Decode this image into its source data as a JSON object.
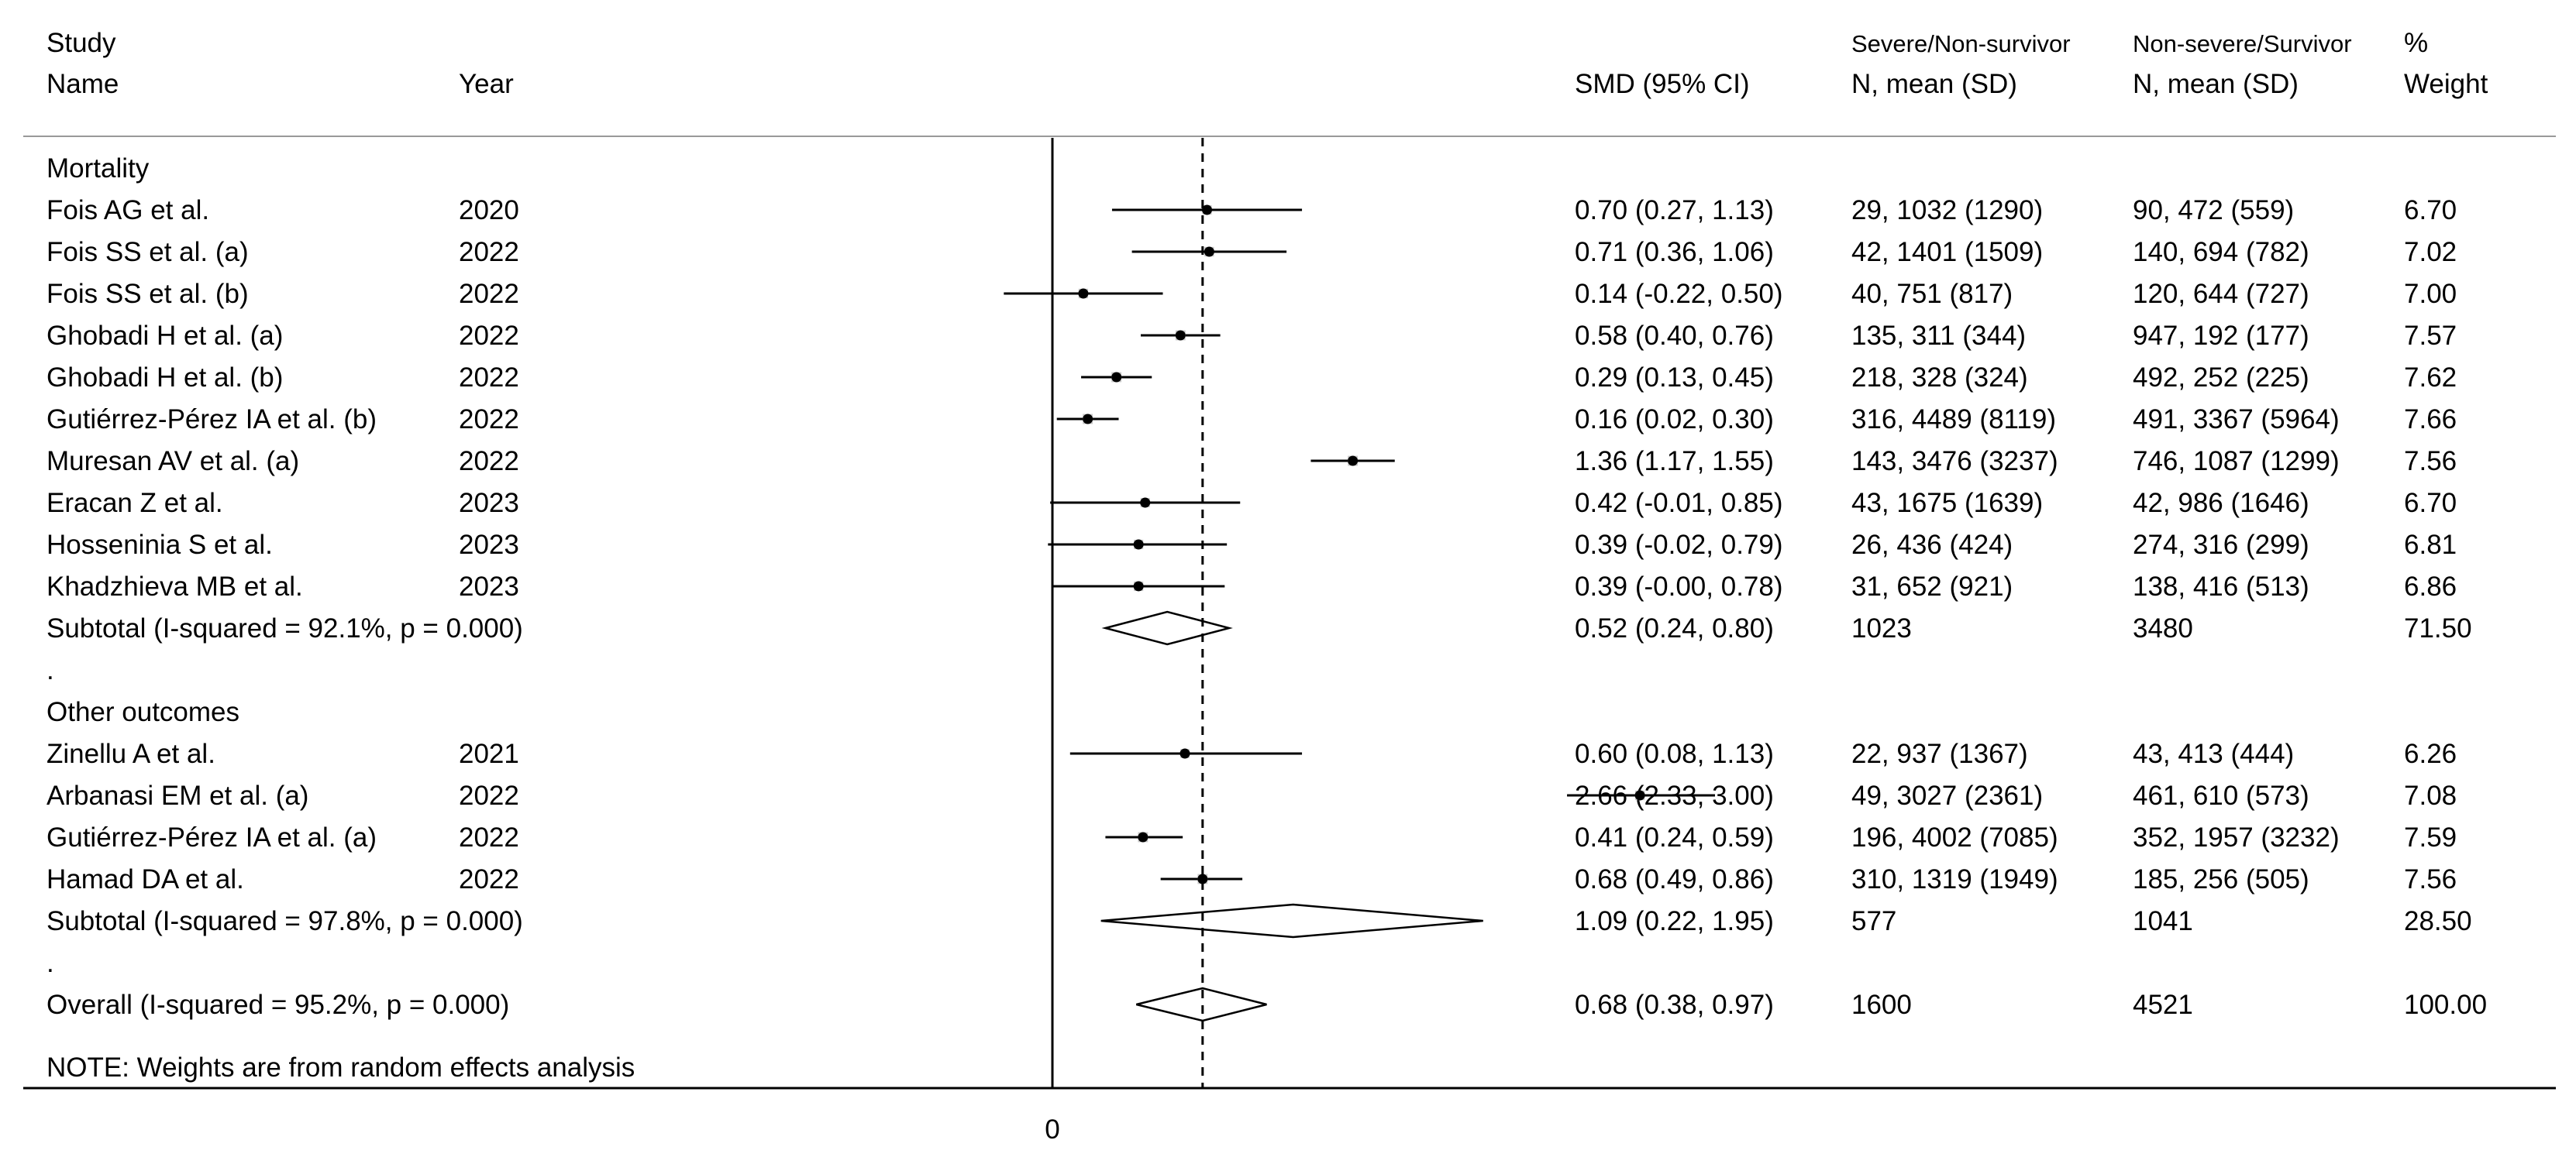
{
  "headers": {
    "study_line1": "Study",
    "study_line2": "Name",
    "year": "Year",
    "smd": "SMD (95% CI)",
    "severe_line1": "Severe/Non-survivor",
    "severe_line2": "N, mean (SD)",
    "nonsevere_line1": "Non-severe/Survivor",
    "nonsevere_line2": "N, mean (SD)",
    "weight_line1": "%",
    "weight_line2": "Weight"
  },
  "note": "NOTE: Weights are from random effects analysis",
  "colors": {
    "ink": "#000000",
    "axis_rule": "#999999",
    "marker": "#000000",
    "weight_box": "#c8c8c8"
  },
  "chart_data": {
    "type": "forest",
    "x_reference": 0,
    "xticks": [
      "0"
    ],
    "overall_line": 0.68,
    "xlim": [
      -0.5,
      3.1
    ],
    "groups": [
      {
        "name": "Mortality",
        "studies": [
          {
            "name": "Fois AG et al.",
            "year": "2020",
            "smd": 0.7,
            "lo": 0.27,
            "hi": 1.13,
            "ci_text": "0.70 (0.27, 1.13)",
            "severe": "29, 1032 (1290)",
            "nonsevere": "90, 472 (559)",
            "weight": "6.70"
          },
          {
            "name": "Fois SS et al. (a)",
            "year": "2022",
            "smd": 0.71,
            "lo": 0.36,
            "hi": 1.06,
            "ci_text": "0.71 (0.36, 1.06)",
            "severe": "42, 1401 (1509)",
            "nonsevere": "140, 694 (782)",
            "weight": "7.02"
          },
          {
            "name": "Fois SS et al. (b)",
            "year": "2022",
            "smd": 0.14,
            "lo": -0.22,
            "hi": 0.5,
            "ci_text": "0.14 (-0.22, 0.50)",
            "severe": "40, 751 (817)",
            "nonsevere": "120, 644 (727)",
            "weight": "7.00"
          },
          {
            "name": "Ghobadi H et al. (a)",
            "year": "2022",
            "smd": 0.58,
            "lo": 0.4,
            "hi": 0.76,
            "ci_text": "0.58 (0.40, 0.76)",
            "severe": "135, 311 (344)",
            "nonsevere": "947, 192 (177)",
            "weight": "7.57"
          },
          {
            "name": "Ghobadi H et al. (b)",
            "year": "2022",
            "smd": 0.29,
            "lo": 0.13,
            "hi": 0.45,
            "ci_text": "0.29 (0.13, 0.45)",
            "severe": "218, 328 (324)",
            "nonsevere": "492, 252 (225)",
            "weight": "7.62"
          },
          {
            "name": "Gutiérrez-Pérez IA et al. (b)",
            "year": "2022",
            "smd": 0.16,
            "lo": 0.02,
            "hi": 0.3,
            "ci_text": "0.16 (0.02, 0.30)",
            "severe": "316, 4489 (8119)",
            "nonsevere": "491, 3367 (5964)",
            "weight": "7.66"
          },
          {
            "name": "Muresan AV et al. (a)",
            "year": "2022",
            "smd": 1.36,
            "lo": 1.17,
            "hi": 1.55,
            "ci_text": "1.36 (1.17, 1.55)",
            "severe": "143, 3476 (3237)",
            "nonsevere": "746, 1087 (1299)",
            "weight": "7.56"
          },
          {
            "name": "Eracan Z et al.",
            "year": "2023",
            "smd": 0.42,
            "lo": -0.01,
            "hi": 0.85,
            "ci_text": "0.42 (-0.01, 0.85)",
            "severe": "43, 1675 (1639)",
            "nonsevere": "42, 986 (1646)",
            "weight": "6.70"
          },
          {
            "name": "Hosseninia S et al.",
            "year": "2023",
            "smd": 0.39,
            "lo": -0.02,
            "hi": 0.79,
            "ci_text": "0.39 (-0.02, 0.79)",
            "severe": "26, 436 (424)",
            "nonsevere": "274, 316 (299)",
            "weight": "6.81"
          },
          {
            "name": "Khadzhieva MB et al.",
            "year": "2023",
            "smd": 0.39,
            "lo": -0.0,
            "hi": 0.78,
            "ci_text": "0.39 (-0.00, 0.78)",
            "severe": "31, 652 (921)",
            "nonsevere": "138, 416 (513)",
            "weight": "6.86"
          }
        ],
        "subtotal": {
          "label": "Subtotal  (I-squared = 92.1%, p = 0.000)",
          "smd": 0.52,
          "lo": 0.24,
          "hi": 0.8,
          "ci_text": "0.52 (0.24, 0.80)",
          "severe": "1023",
          "nonsevere": "3480",
          "weight": "71.50"
        }
      },
      {
        "name": "Other outcomes",
        "studies": [
          {
            "name": "Zinellu A et al.",
            "year": "2021",
            "smd": 0.6,
            "lo": 0.08,
            "hi": 1.13,
            "ci_text": "0.60 (0.08, 1.13)",
            "severe": "22, 937 (1367)",
            "nonsevere": "43, 413 (444)",
            "weight": "6.26"
          },
          {
            "name": "Arbanasi EM et al. (a)",
            "year": "2022",
            "smd": 2.66,
            "lo": 2.33,
            "hi": 3.0,
            "ci_text": "2.66 (2.33, 3.00)",
            "severe": "49, 3027 (2361)",
            "nonsevere": "461, 610 (573)",
            "weight": "7.08"
          },
          {
            "name": "Gutiérrez-Pérez IA et al. (a)",
            "year": "2022",
            "smd": 0.41,
            "lo": 0.24,
            "hi": 0.59,
            "ci_text": "0.41 (0.24, 0.59)",
            "severe": "196, 4002 (7085)",
            "nonsevere": "352, 1957 (3232)",
            "weight": "7.59"
          },
          {
            "name": "Hamad DA et al.",
            "year": "2022",
            "smd": 0.68,
            "lo": 0.49,
            "hi": 0.86,
            "ci_text": "0.68 (0.49, 0.86)",
            "severe": "310, 1319 (1949)",
            "nonsevere": "185, 256 (505)",
            "weight": "7.56"
          }
        ],
        "subtotal": {
          "label": "Subtotal  (I-squared = 97.8%, p = 0.000)",
          "smd": 1.09,
          "lo": 0.22,
          "hi": 1.95,
          "ci_text": "1.09 (0.22, 1.95)",
          "severe": "577",
          "nonsevere": "1041",
          "weight": "28.50"
        }
      }
    ],
    "overall": {
      "label": "Overall  (I-squared = 95.2%, p = 0.000)",
      "smd": 0.68,
      "lo": 0.38,
      "hi": 0.97,
      "ci_text": "0.68 (0.38, 0.97)",
      "severe": "1600",
      "nonsevere": "4521",
      "weight": "100.00"
    }
  }
}
